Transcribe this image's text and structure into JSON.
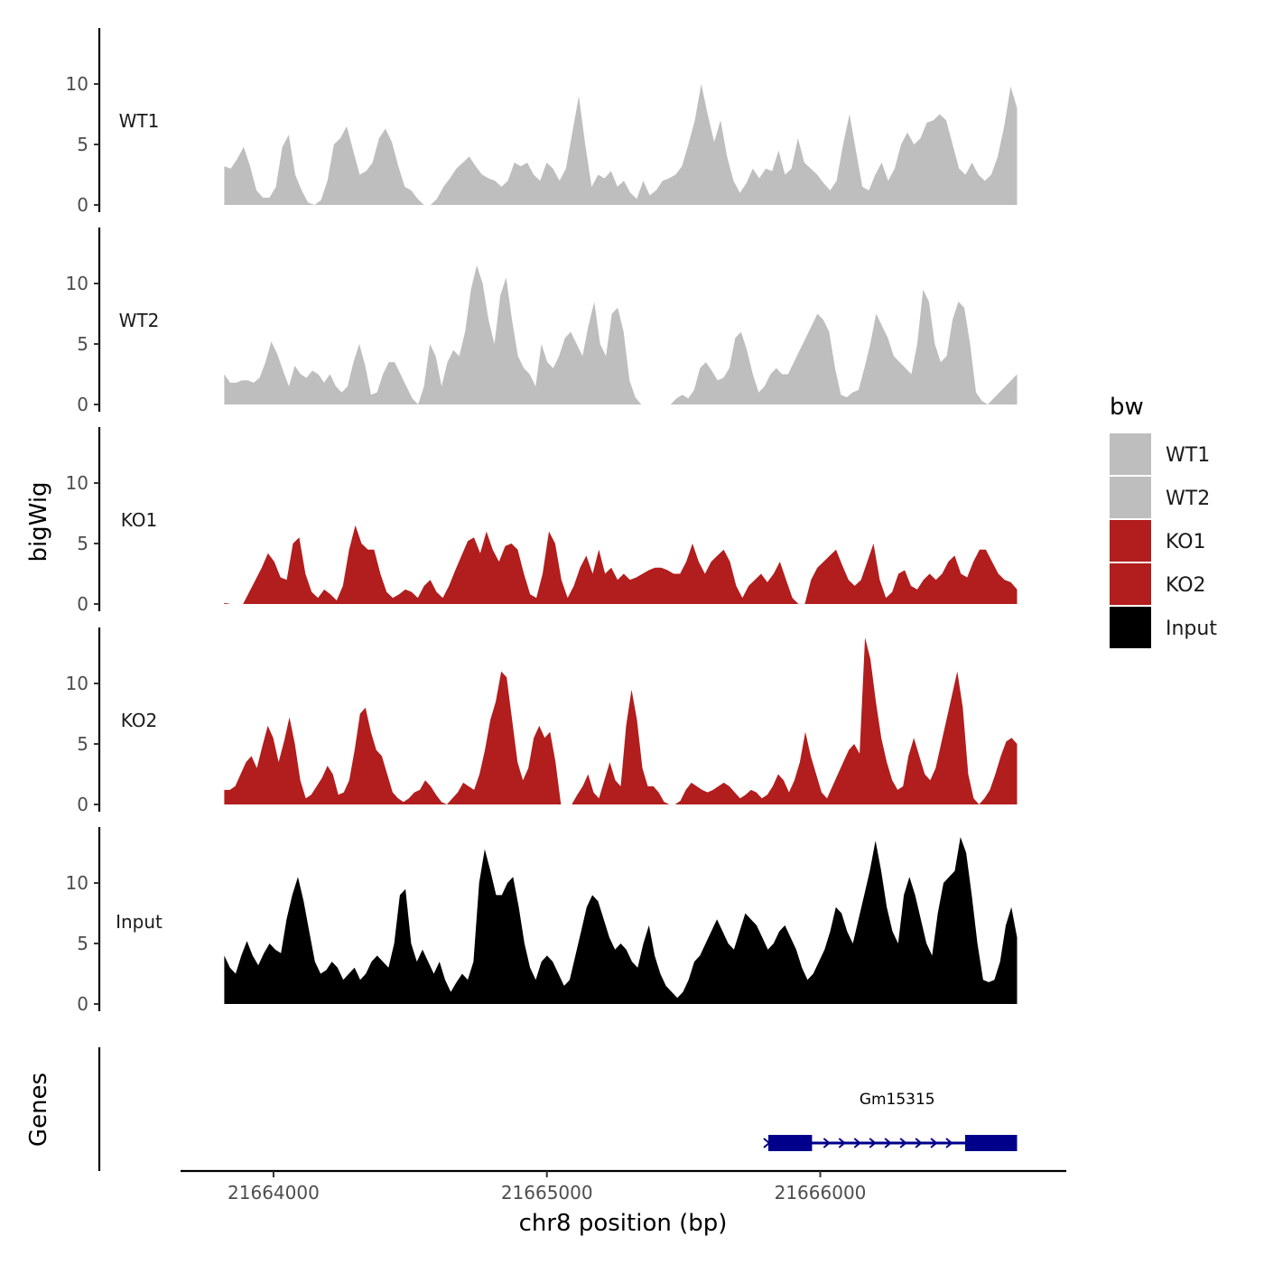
{
  "chart_data": {
    "type": "area",
    "ylabel": "bigWig",
    "xlabel": "chr8 position (bp)",
    "gene_track_label": "Genes",
    "x_range": [
      21663820,
      21666720
    ],
    "x_domain": [
      21663660,
      21666900
    ],
    "ylim": [
      0,
      14.5
    ],
    "y_ticks": [
      0,
      5,
      10
    ],
    "x_ticks": [
      21664000,
      21665000,
      21666000
    ],
    "legend": {
      "title": "bw",
      "entries": [
        {
          "label": "WT1",
          "color": "#bebebe"
        },
        {
          "label": "WT2",
          "color": "#bebebe"
        },
        {
          "label": "KO1",
          "color": "#b21d1d"
        },
        {
          "label": "KO2",
          "color": "#b21d1d"
        },
        {
          "label": "Input",
          "color": "#000000"
        }
      ]
    },
    "series": [
      {
        "name": "WT1",
        "color": "#bebebe",
        "values": [
          3.2,
          3.0,
          3.8,
          4.8,
          3.2,
          1.2,
          0.6,
          0.6,
          1.5,
          4.8,
          5.8,
          2.5,
          1.2,
          0.2,
          0,
          0.4,
          2.0,
          5.0,
          5.5,
          6.5,
          4.5,
          2.5,
          2.8,
          3.5,
          5.5,
          6.3,
          5.2,
          3.2,
          1.5,
          1.2,
          0.5,
          0,
          0,
          0.5,
          1.5,
          2.2,
          3.0,
          3.5,
          4.0,
          3.2,
          2.5,
          2.2,
          2.0,
          1.5,
          2.0,
          3.5,
          3.2,
          3.5,
          2.5,
          2.0,
          3.5,
          3.0,
          2.0,
          3.0,
          6.0,
          9.0,
          5.0,
          1.5,
          2.5,
          2.2,
          2.8,
          1.5,
          2.0,
          1.0,
          0.5,
          2.0,
          0.8,
          1.2,
          2.0,
          2.2,
          2.5,
          3.2,
          5.0,
          7.0,
          10.0,
          7.5,
          5.2,
          7.0,
          4.0,
          2.0,
          1.0,
          1.8,
          3.0,
          2.2,
          3.0,
          2.8,
          4.5,
          2.5,
          3.0,
          5.5,
          3.5,
          3.0,
          2.5,
          1.8,
          1.2,
          2.0,
          5.0,
          7.5,
          4.5,
          1.5,
          1.2,
          2.5,
          3.5,
          2.0,
          3.0,
          5.0,
          6.0,
          5.0,
          5.5,
          6.8,
          7.0,
          7.5,
          7.0,
          5.0,
          3.0,
          2.5,
          3.5,
          2.5,
          2.0,
          2.5,
          4.0,
          6.5,
          9.8,
          8.0
        ]
      },
      {
        "name": "WT2",
        "color": "#bebebe",
        "values": [
          2.5,
          1.8,
          1.8,
          2.0,
          2.0,
          1.8,
          2.2,
          3.5,
          5.2,
          4.2,
          2.8,
          1.5,
          3.2,
          2.5,
          2.2,
          2.8,
          2.5,
          1.8,
          2.5,
          1.5,
          1.0,
          1.5,
          3.5,
          5.0,
          3.2,
          0.8,
          1.0,
          2.5,
          3.5,
          3.5,
          2.5,
          1.5,
          0.5,
          0,
          1.5,
          5.0,
          4.0,
          1.5,
          3.5,
          4.5,
          4.0,
          6.0,
          9.5,
          11.5,
          10.0,
          7.0,
          5.0,
          9.0,
          10.5,
          7.0,
          4.0,
          3.0,
          2.5,
          1.5,
          5.0,
          3.5,
          3.0,
          4.0,
          5.5,
          6.0,
          5.0,
          4.0,
          6.5,
          8.5,
          5.0,
          4.0,
          7.5,
          8.0,
          6.0,
          2.0,
          0.6,
          0,
          0,
          0,
          0,
          0,
          0,
          0.5,
          0.8,
          0.5,
          1.2,
          3.0,
          3.5,
          2.8,
          2.0,
          2.2,
          3.0,
          5.5,
          6.0,
          4.5,
          2.5,
          1.0,
          1.5,
          2.5,
          3.0,
          2.5,
          2.5,
          3.5,
          4.5,
          5.5,
          6.5,
          7.5,
          7.0,
          6.0,
          3.0,
          0.8,
          0.6,
          1.0,
          1.2,
          3.0,
          5.0,
          7.5,
          6.5,
          5.5,
          4.0,
          3.5,
          3.0,
          2.5,
          5.0,
          9.5,
          8.5,
          5.0,
          3.5,
          4.0,
          7.0,
          8.5,
          8.0,
          5.0,
          1.0,
          0.3,
          0,
          0.5,
          1.0,
          1.5,
          2.0,
          2.5
        ]
      },
      {
        "name": "KO1",
        "color": "#b21d1d",
        "values": [
          0.1,
          0,
          0,
          0,
          1.0,
          2.0,
          3.0,
          4.2,
          3.5,
          2.2,
          2.0,
          5.0,
          5.5,
          2.5,
          1.0,
          0.5,
          1.2,
          0.8,
          0.3,
          1.5,
          4.5,
          6.5,
          5.0,
          4.5,
          4.5,
          2.5,
          1.0,
          0.5,
          0.8,
          1.2,
          1.0,
          0.5,
          1.5,
          2.0,
          1.0,
          0.5,
          1.5,
          2.8,
          4.0,
          5.2,
          5.5,
          4.2,
          6.0,
          4.5,
          3.5,
          4.8,
          5.0,
          4.5,
          2.5,
          0.8,
          0.5,
          2.5,
          6.0,
          5.0,
          2.0,
          0.5,
          1.5,
          3.0,
          4.0,
          2.5,
          4.5,
          2.5,
          3.0,
          2.0,
          2.5,
          2.0,
          2.2,
          2.5,
          2.8,
          3.0,
          3.0,
          2.8,
          2.5,
          2.5,
          3.5,
          5.0,
          3.5,
          2.5,
          3.5,
          4.0,
          4.5,
          3.5,
          1.5,
          0.5,
          1.5,
          2.0,
          2.5,
          1.8,
          2.5,
          3.5,
          2.0,
          0.5,
          0,
          0,
          2.0,
          3.0,
          3.5,
          4.0,
          4.5,
          3.2,
          2.0,
          1.5,
          2.0,
          3.5,
          5.0,
          2.0,
          0.5,
          1.0,
          2.5,
          2.8,
          1.5,
          1.2,
          2.0,
          2.5,
          2.0,
          2.5,
          3.5,
          4.0,
          2.5,
          2.2,
          3.5,
          4.5,
          4.5,
          3.5,
          2.5,
          2.0,
          1.8,
          1.2
        ]
      },
      {
        "name": "KO2",
        "color": "#b21d1d",
        "values": [
          1.2,
          1.2,
          1.5,
          2.5,
          3.5,
          4.0,
          3.0,
          4.8,
          6.5,
          5.5,
          3.5,
          5.2,
          7.2,
          5.0,
          2.0,
          0.5,
          0.8,
          1.5,
          2.2,
          3.2,
          2.5,
          0.8,
          1.0,
          2.0,
          4.5,
          7.5,
          8.0,
          6.0,
          4.5,
          4.0,
          2.5,
          1.0,
          0.5,
          0.2,
          0.5,
          1.0,
          1.2,
          2.0,
          1.5,
          0.8,
          0.2,
          0,
          0.5,
          1.0,
          1.8,
          1.5,
          1.2,
          2.5,
          4.5,
          7.0,
          8.5,
          11.0,
          10.5,
          7.0,
          3.5,
          2.0,
          3.0,
          5.5,
          6.5,
          5.5,
          6.0,
          3.5,
          0,
          0,
          0,
          0.8,
          1.5,
          2.5,
          1.0,
          0.5,
          2.0,
          3.5,
          2.0,
          1.5,
          6.5,
          9.5,
          7.0,
          3.0,
          1.5,
          1.5,
          1.0,
          0.2,
          0,
          0,
          0.3,
          1.2,
          1.8,
          1.5,
          1.2,
          1.0,
          1.2,
          1.5,
          1.8,
          1.5,
          1.0,
          0.5,
          0.8,
          1.2,
          1.0,
          0.5,
          0.8,
          1.5,
          2.5,
          2.0,
          1.0,
          2.0,
          3.5,
          6.0,
          4.0,
          2.5,
          1.0,
          0.5,
          1.5,
          2.5,
          3.5,
          4.5,
          5.0,
          4.2,
          13.8,
          12.0,
          8.5,
          5.5,
          3.5,
          2.0,
          1.2,
          1.5,
          4.0,
          5.5,
          4.0,
          2.5,
          2.0,
          3.0,
          5.0,
          7.0,
          9.0,
          11.0,
          8.0,
          2.5,
          0.5,
          0,
          0.5,
          1.2,
          2.5,
          4.0,
          5.2,
          5.5,
          5.0
        ]
      },
      {
        "name": "Input",
        "color": "#000000",
        "values": [
          4.0,
          3.0,
          2.5,
          4.0,
          5.2,
          4.0,
          3.2,
          4.2,
          5.0,
          4.5,
          4.2,
          7.0,
          9.0,
          10.5,
          8.5,
          6.0,
          3.5,
          2.5,
          2.8,
          3.5,
          3.0,
          2.0,
          2.5,
          3.0,
          2.0,
          2.5,
          3.5,
          4.0,
          3.5,
          3.0,
          5.0,
          9.0,
          9.5,
          5.0,
          3.5,
          4.5,
          3.5,
          2.5,
          3.5,
          2.0,
          1.0,
          1.8,
          2.5,
          2.0,
          3.5,
          10.0,
          12.8,
          11.0,
          9.0,
          9.0,
          10.0,
          10.5,
          8.0,
          5.0,
          3.0,
          2.0,
          3.5,
          4.0,
          3.5,
          2.5,
          1.5,
          2.0,
          4.0,
          6.0,
          8.0,
          9.0,
          8.5,
          7.0,
          5.5,
          4.5,
          5.0,
          4.5,
          3.5,
          3.0,
          5.0,
          6.5,
          4.0,
          2.5,
          1.5,
          1.0,
          0.5,
          1.0,
          2.0,
          3.5,
          4.0,
          5.0,
          6.0,
          7.0,
          6.0,
          5.0,
          4.5,
          6.0,
          7.5,
          7.0,
          6.5,
          5.5,
          4.5,
          5.0,
          6.0,
          6.5,
          5.5,
          4.5,
          3.0,
          2.0,
          2.5,
          3.5,
          4.5,
          6.0,
          8.0,
          7.5,
          6.0,
          5.0,
          7.0,
          9.0,
          11.0,
          13.5,
          11.0,
          8.0,
          6.0,
          5.0,
          9.0,
          10.5,
          9.0,
          7.0,
          5.0,
          4.0,
          7.5,
          10.0,
          10.5,
          11.0,
          13.8,
          12.5,
          9.0,
          5.0,
          2.0,
          1.8,
          2.0,
          3.5,
          6.5,
          8.0,
          5.5
        ]
      }
    ],
    "genes": [
      {
        "name": "Gm15315",
        "start": 21665810,
        "end": 21666720,
        "exons": [
          [
            21665810,
            21665970
          ],
          [
            21666530,
            21666720
          ]
        ],
        "strand": "+"
      }
    ]
  }
}
